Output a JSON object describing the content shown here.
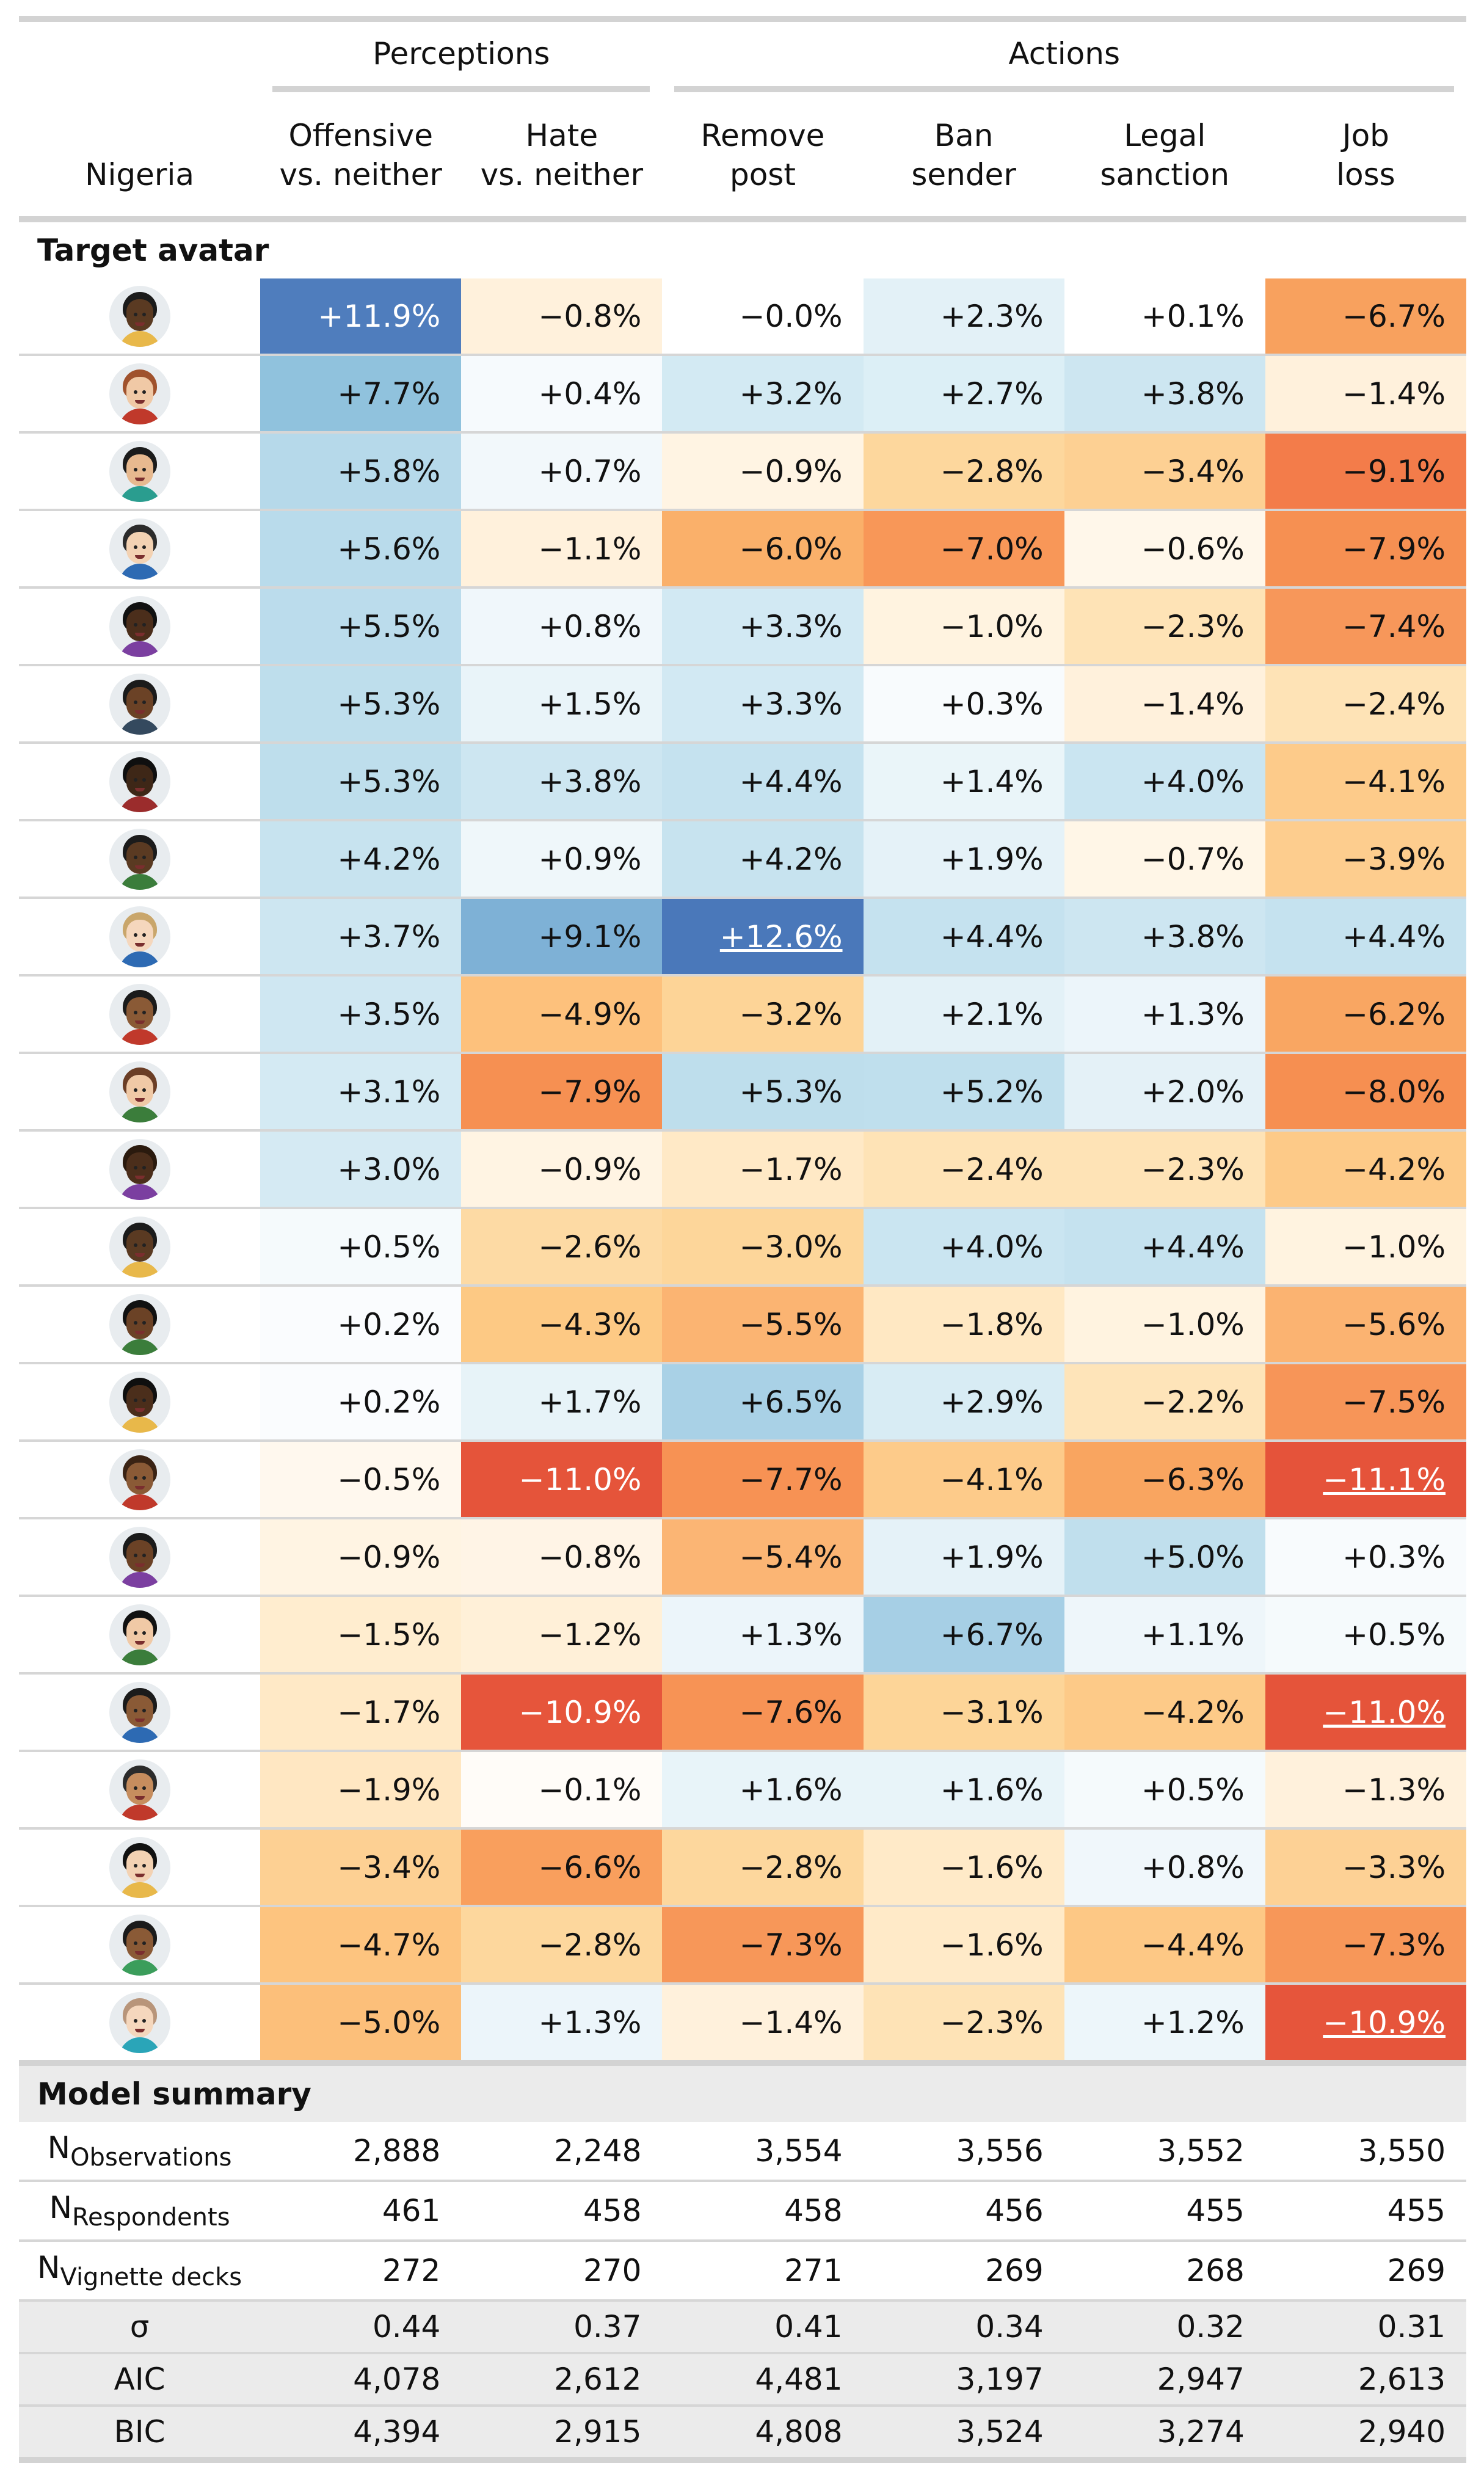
{
  "header": {
    "country": "Nigeria",
    "group_perceptions": "Perceptions",
    "group_actions": "Actions",
    "columns": [
      {
        "l1": "Offensive",
        "l2": "vs. neither"
      },
      {
        "l1": "Hate",
        "l2": "vs. neither"
      },
      {
        "l1": "Remove",
        "l2": "post"
      },
      {
        "l1": "Ban",
        "l2": "sender"
      },
      {
        "l1": "Legal",
        "l2": "sanction"
      },
      {
        "l1": "Job",
        "l2": "loss"
      }
    ]
  },
  "section_target": "Target avatar",
  "section_model": "Model summary",
  "rows": [
    {
      "avatar": {
        "skin": "#5a3a22",
        "hair": "#1b1b1b",
        "shirt": "#e8b84a"
      },
      "vals": [
        "+11.9%",
        "−0.8%",
        "−0.0%",
        "+2.3%",
        "+0.1%",
        "−6.7%"
      ],
      "colors": [
        "#4f7dbd",
        "#fff1dc",
        "#ffffff",
        "#e3f1f7",
        "#ffffff",
        "#f8a15e"
      ],
      "white": [
        true,
        false,
        false,
        false,
        false,
        false
      ],
      "underline": [
        false,
        false,
        false,
        false,
        false,
        false
      ]
    },
    {
      "avatar": {
        "skin": "#f0c9a6",
        "hair": "#a0522d",
        "shirt": "#c0392b"
      },
      "vals": [
        "+7.7%",
        "+0.4%",
        "+3.2%",
        "+2.7%",
        "+3.8%",
        "−1.4%"
      ],
      "colors": [
        "#90c2dd",
        "#f6fafd",
        "#d3eaf3",
        "#dceff6",
        "#cde6f1",
        "#fff1dc"
      ],
      "white": [
        false,
        false,
        false,
        false,
        false,
        false
      ],
      "underline": [
        false,
        false,
        false,
        false,
        false,
        false
      ]
    },
    {
      "avatar": {
        "skin": "#e7b98f",
        "hair": "#1b1b1b",
        "shirt": "#2a9d8f"
      },
      "vals": [
        "+5.8%",
        "+0.7%",
        "−0.9%",
        "−2.8%",
        "−3.4%",
        "−9.1%"
      ],
      "colors": [
        "#b6d9ea",
        "#f2f8fb",
        "#fff4e3",
        "#fdd79d",
        "#fdd093",
        "#f37c4a"
      ],
      "white": [
        false,
        false,
        false,
        false,
        false,
        false
      ],
      "underline": [
        false,
        false,
        false,
        false,
        false,
        false
      ]
    },
    {
      "avatar": {
        "skin": "#f3d2b3",
        "hair": "#2b2b2b",
        "shirt": "#2d6ab3"
      },
      "vals": [
        "+5.6%",
        "−1.1%",
        "−6.0%",
        "−7.0%",
        "−0.6%",
        "−7.9%"
      ],
      "colors": [
        "#b9dbeb",
        "#fff1dc",
        "#fab06a",
        "#f89758",
        "#fff7ea",
        "#f69052"
      ],
      "white": [
        false,
        false,
        false,
        false,
        false,
        false
      ],
      "underline": [
        false,
        false,
        false,
        false,
        false,
        false
      ]
    },
    {
      "avatar": {
        "skin": "#4b2e1b",
        "hair": "#111111",
        "shirt": "#7b3fa0"
      },
      "vals": [
        "+5.5%",
        "+0.8%",
        "+3.3%",
        "−1.0%",
        "−2.3%",
        "−7.4%"
      ],
      "colors": [
        "#bbdcec",
        "#f0f7fb",
        "#d2e9f3",
        "#fff3e0",
        "#fee3b6",
        "#f7975a"
      ],
      "white": [
        false,
        false,
        false,
        false,
        false,
        false
      ],
      "underline": [
        false,
        false,
        false,
        false,
        false,
        false
      ]
    },
    {
      "avatar": {
        "skin": "#6b4226",
        "hair": "#1b1b1b",
        "shirt": "#34495e"
      },
      "vals": [
        "+5.3%",
        "+1.5%",
        "+3.3%",
        "+0.3%",
        "−1.4%",
        "−2.4%"
      ],
      "colors": [
        "#bedeec",
        "#e9f4f9",
        "#d2e9f3",
        "#f8fbfd",
        "#fff1dc",
        "#fee3b6"
      ],
      "white": [
        false,
        false,
        false,
        false,
        false,
        false
      ],
      "underline": [
        false,
        false,
        false,
        false,
        false,
        false
      ]
    },
    {
      "avatar": {
        "skin": "#3e2717",
        "hair": "#0f0f0f",
        "shirt": "#9b2c2c"
      },
      "vals": [
        "+5.3%",
        "+3.8%",
        "+4.4%",
        "+1.4%",
        "+4.0%",
        "−4.1%"
      ],
      "colors": [
        "#bedeec",
        "#cde6f1",
        "#c5e2ef",
        "#eaf5f9",
        "#cae5f1",
        "#fdcb8a"
      ],
      "white": [
        false,
        false,
        false,
        false,
        false,
        false
      ],
      "underline": [
        false,
        false,
        false,
        false,
        false,
        false
      ]
    },
    {
      "avatar": {
        "skin": "#5a3a22",
        "hair": "#1b1b1b",
        "shirt": "#3b7d3b"
      },
      "vals": [
        "+4.2%",
        "+0.9%",
        "+4.2%",
        "+1.9%",
        "−0.7%",
        "−3.9%"
      ],
      "colors": [
        "#c7e3ef",
        "#eff7fa",
        "#c7e3ef",
        "#e5f2f8",
        "#fff6e7",
        "#fdcd8e"
      ],
      "white": [
        false,
        false,
        false,
        false,
        false,
        false
      ],
      "underline": [
        false,
        false,
        false,
        false,
        false,
        false
      ]
    },
    {
      "avatar": {
        "skin": "#f5d7bd",
        "hair": "#c9a66b",
        "shirt": "#2d6ab3"
      },
      "vals": [
        "+3.7%",
        "+9.1%",
        "+12.6%",
        "+4.4%",
        "+3.8%",
        "+4.4%"
      ],
      "colors": [
        "#cde6f1",
        "#7eb1d6",
        "#4a78ba",
        "#c5e2ef",
        "#cde6f1",
        "#c5e2ef"
      ],
      "white": [
        false,
        false,
        true,
        false,
        false,
        false
      ],
      "underline": [
        false,
        false,
        true,
        false,
        false,
        false
      ]
    },
    {
      "avatar": {
        "skin": "#8a5a36",
        "hair": "#1b1b1b",
        "shirt": "#c0392b"
      },
      "vals": [
        "+3.5%",
        "−4.9%",
        "−3.2%",
        "+2.1%",
        "+1.3%",
        "−6.2%"
      ],
      "colors": [
        "#cfe7f2",
        "#fdc17c",
        "#fdd497",
        "#e3f1f7",
        "#ecf5fa",
        "#f9a662"
      ],
      "white": [
        false,
        false,
        false,
        false,
        false,
        false
      ],
      "underline": [
        false,
        false,
        false,
        false,
        false,
        false
      ]
    },
    {
      "avatar": {
        "skin": "#f0c9a6",
        "hair": "#6b3e26",
        "shirt": "#3b7d3b"
      },
      "vals": [
        "+3.1%",
        "−7.9%",
        "+5.3%",
        "+5.2%",
        "+2.0%",
        "−8.0%"
      ],
      "colors": [
        "#d4eaf3",
        "#f69052",
        "#bedeec",
        "#bfdfed",
        "#e4f1f7",
        "#f68f51"
      ],
      "white": [
        false,
        false,
        false,
        false,
        false,
        false
      ],
      "underline": [
        false,
        false,
        false,
        false,
        false,
        false
      ]
    },
    {
      "avatar": {
        "skin": "#4b2e1b",
        "hair": "#2a1a0e",
        "shirt": "#7b3fa0"
      },
      "vals": [
        "+3.0%",
        "−0.9%",
        "−1.7%",
        "−2.4%",
        "−2.3%",
        "−4.2%"
      ],
      "colors": [
        "#d5eaf3",
        "#fff4e3",
        "#ffe9c6",
        "#fee3b6",
        "#fee3b6",
        "#fdca88"
      ],
      "white": [
        false,
        false,
        false,
        false,
        false,
        false
      ],
      "underline": [
        false,
        false,
        false,
        false,
        false,
        false
      ]
    },
    {
      "avatar": {
        "skin": "#5a3a22",
        "hair": "#1b1b1b",
        "shirt": "#e8b84a"
      },
      "vals": [
        "+0.5%",
        "−2.6%",
        "−3.0%",
        "+4.0%",
        "+4.4%",
        "−1.0%"
      ],
      "colors": [
        "#f5fafc",
        "#fddaa4",
        "#fdd69a",
        "#cae5f1",
        "#c5e2ef",
        "#fff3e0"
      ],
      "white": [
        false,
        false,
        false,
        false,
        false,
        false
      ],
      "underline": [
        false,
        false,
        false,
        false,
        false,
        false
      ]
    },
    {
      "avatar": {
        "skin": "#6b4226",
        "hair": "#111111",
        "shirt": "#3b7d3b"
      },
      "vals": [
        "+0.2%",
        "−4.3%",
        "−5.5%",
        "−1.8%",
        "−1.0%",
        "−5.6%"
      ],
      "colors": [
        "#fafcfe",
        "#fdc984",
        "#fbb472",
        "#ffe8c3",
        "#fff3e0",
        "#fbb371"
      ],
      "white": [
        false,
        false,
        false,
        false,
        false,
        false
      ],
      "underline": [
        false,
        false,
        false,
        false,
        false,
        false
      ]
    },
    {
      "avatar": {
        "skin": "#4b2e1b",
        "hair": "#0f0f0f",
        "shirt": "#e8b84a"
      },
      "vals": [
        "+0.2%",
        "+1.7%",
        "+6.5%",
        "+2.9%",
        "−2.2%",
        "−7.5%"
      ],
      "colors": [
        "#fafcfe",
        "#e7f3f8",
        "#a9d1e6",
        "#d8ecf4",
        "#fee4b9",
        "#f79558"
      ],
      "white": [
        false,
        false,
        false,
        false,
        false,
        false
      ],
      "underline": [
        false,
        false,
        false,
        false,
        false,
        false
      ]
    },
    {
      "avatar": {
        "skin": "#8a5a36",
        "hair": "#3a2314",
        "shirt": "#c0392b"
      },
      "vals": [
        "−0.5%",
        "−11.0%",
        "−7.7%",
        "−4.1%",
        "−6.3%",
        "−11.1%"
      ],
      "colors": [
        "#fff8ee",
        "#e5543a",
        "#f79254",
        "#fdcb8a",
        "#f9a560",
        "#e5533a"
      ],
      "white": [
        false,
        true,
        false,
        false,
        false,
        true
      ],
      "underline": [
        false,
        false,
        false,
        false,
        false,
        true
      ]
    },
    {
      "avatar": {
        "skin": "#6b4226",
        "hair": "#1b1b1b",
        "shirt": "#7b3fa0"
      },
      "vals": [
        "−0.9%",
        "−0.8%",
        "−5.4%",
        "+1.9%",
        "+5.0%",
        "+0.3%"
      ],
      "colors": [
        "#fff4e3",
        "#fff4e6",
        "#fbb574",
        "#e5f2f8",
        "#c0dfed",
        "#f8fbfd"
      ],
      "white": [
        false,
        false,
        false,
        false,
        false,
        false
      ],
      "underline": [
        false,
        false,
        false,
        false,
        false,
        false
      ]
    },
    {
      "avatar": {
        "skin": "#f0c9a6",
        "hair": "#111111",
        "shirt": "#3b7d3b"
      },
      "vals": [
        "−1.5%",
        "−1.2%",
        "+1.3%",
        "+6.7%",
        "+1.1%",
        "+0.5%"
      ],
      "colors": [
        "#ffedcf",
        "#fff0d8",
        "#ecf5fa",
        "#a6cfe5",
        "#eef6fa",
        "#f5fafc"
      ],
      "white": [
        false,
        false,
        false,
        false,
        false,
        false
      ],
      "underline": [
        false,
        false,
        false,
        false,
        false,
        false
      ]
    },
    {
      "avatar": {
        "skin": "#8a5a36",
        "hair": "#1b1b1b",
        "shirt": "#2d6ab3"
      },
      "vals": [
        "−1.7%",
        "−10.9%",
        "−7.6%",
        "−3.1%",
        "−4.2%",
        "−11.0%"
      ],
      "colors": [
        "#ffe9c6",
        "#e6553b",
        "#f79355",
        "#fdd598",
        "#fdca88",
        "#e5543a"
      ],
      "white": [
        false,
        true,
        false,
        false,
        false,
        true
      ],
      "underline": [
        false,
        false,
        false,
        false,
        false,
        true
      ]
    },
    {
      "avatar": {
        "skin": "#c68d5e",
        "hair": "#2b2b2b",
        "shirt": "#c0392b"
      },
      "vals": [
        "−1.9%",
        "−0.1%",
        "+1.6%",
        "+1.6%",
        "+0.5%",
        "−1.3%"
      ],
      "colors": [
        "#ffe7c2",
        "#fffcf8",
        "#e8f4f9",
        "#e8f4f9",
        "#f5fafc",
        "#fff1dc"
      ],
      "white": [
        false,
        false,
        false,
        false,
        false,
        false
      ],
      "underline": [
        false,
        false,
        false,
        false,
        false,
        false
      ]
    },
    {
      "avatar": {
        "skin": "#f3d2b3",
        "hair": "#111111",
        "shirt": "#e8b84a"
      },
      "vals": [
        "−3.4%",
        "−6.6%",
        "−2.8%",
        "−1.6%",
        "+0.8%",
        "−3.3%"
      ],
      "colors": [
        "#fdd093",
        "#f99f5d",
        "#fdd79d",
        "#ffeac8",
        "#f0f7fb",
        "#fdd195"
      ],
      "white": [
        false,
        false,
        false,
        false,
        false,
        false
      ],
      "underline": [
        false,
        false,
        false,
        false,
        false,
        false
      ]
    },
    {
      "avatar": {
        "skin": "#8a5a36",
        "hair": "#1b1b1b",
        "shirt": "#3b9d5b"
      },
      "vals": [
        "−4.7%",
        "−2.8%",
        "−7.3%",
        "−1.6%",
        "−4.4%",
        "−7.3%"
      ],
      "colors": [
        "#fdc47f",
        "#fdd79d",
        "#f79759",
        "#ffeac8",
        "#fdc885",
        "#f79759"
      ],
      "white": [
        false,
        false,
        false,
        false,
        false,
        false
      ],
      "underline": [
        false,
        false,
        false,
        false,
        false,
        false
      ]
    },
    {
      "avatar": {
        "skin": "#f5d7bd",
        "hair": "#b8957a",
        "shirt": "#2aa5b8"
      },
      "vals": [
        "−5.0%",
        "+1.3%",
        "−1.4%",
        "−2.3%",
        "+1.2%",
        "−10.9%"
      ],
      "colors": [
        "#fcbf7a",
        "#ecf5fa",
        "#fff1dc",
        "#fee3b6",
        "#edf6fa",
        "#e6553b"
      ],
      "white": [
        false,
        false,
        false,
        false,
        false,
        true
      ],
      "underline": [
        false,
        false,
        false,
        false,
        false,
        true
      ]
    }
  ],
  "summary": [
    {
      "label": "N",
      "sub": "Observations",
      "vals": [
        "2,888",
        "2,248",
        "3,554",
        "3,556",
        "3,552",
        "3,550"
      ],
      "grey": false,
      "short": false
    },
    {
      "label": "N",
      "sub": "Respondents",
      "vals": [
        "461",
        "458",
        "458",
        "456",
        "455",
        "455"
      ],
      "grey": false,
      "short": false
    },
    {
      "label": "N",
      "sub": "Vignette decks",
      "vals": [
        "272",
        "270",
        "271",
        "269",
        "268",
        "269"
      ],
      "grey": false,
      "short": false
    },
    {
      "label": "σ",
      "sub": "",
      "vals": [
        "0.44",
        "0.37",
        "0.41",
        "0.34",
        "0.32",
        "0.31"
      ],
      "grey": true,
      "short": true
    },
    {
      "label": "AIC",
      "sub": "",
      "vals": [
        "4,078",
        "2,612",
        "4,481",
        "3,197",
        "2,947",
        "2,613"
      ],
      "grey": true,
      "short": true
    },
    {
      "label": "BIC",
      "sub": "",
      "vals": [
        "4,394",
        "2,915",
        "4,808",
        "3,524",
        "3,274",
        "2,940"
      ],
      "grey": true,
      "short": true
    }
  ]
}
